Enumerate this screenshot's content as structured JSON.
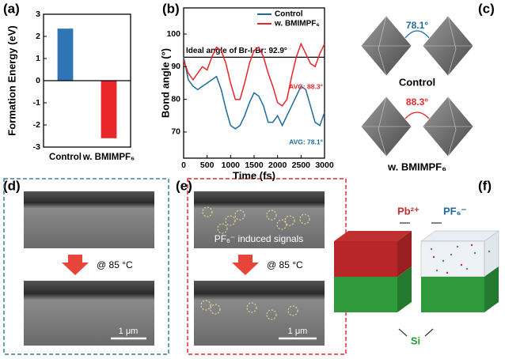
{
  "chart_data": [
    {
      "type": "bar",
      "y_label": "Formation Energy (eV)",
      "categories": [
        "Control",
        "w. BMIMPF₆"
      ],
      "values": [
        2.35,
        -2.6
      ],
      "colors": [
        "#2f75b5",
        "#e8262a"
      ],
      "ylim": [
        -3,
        3
      ],
      "yticks": [
        -3,
        -2,
        -1,
        0,
        1,
        2,
        3
      ]
    },
    {
      "type": "line",
      "x_label": "Time (fs)",
      "y_label": "Bond angle (°)",
      "x": [
        0,
        100,
        200,
        300,
        400,
        500,
        600,
        700,
        800,
        900,
        1000,
        1100,
        1200,
        1300,
        1400,
        1500,
        1600,
        1700,
        1800,
        1900,
        2000,
        2100,
        2200,
        2300,
        2400,
        2500,
        2600,
        2700,
        2800,
        2900,
        3000
      ],
      "series": [
        {
          "name": "Control",
          "color": "#1f6a9c",
          "values": [
            93,
            86,
            84,
            83,
            84,
            85,
            86,
            87,
            83,
            77,
            72,
            71,
            72,
            75,
            79,
            82,
            81,
            78,
            73,
            73,
            75,
            72,
            75,
            78,
            81,
            84,
            83,
            78,
            73,
            72,
            76
          ]
        },
        {
          "name": "w. BMIMPF₆",
          "color": "#e8262a",
          "values": [
            92,
            88,
            86,
            88,
            90,
            89,
            93,
            96,
            95,
            91,
            85,
            80,
            80,
            85,
            91,
            95,
            96,
            93,
            88,
            84,
            79,
            78,
            80,
            87,
            93,
            97,
            94,
            91,
            90,
            94,
            97
          ]
        }
      ],
      "reference_line": {
        "value": 92.9,
        "label": "Ideal angle of Br-I-Br: 92.9°"
      },
      "annotations": [
        "AVG: 88.3°",
        "AVG: 78.1°"
      ],
      "xlim": [
        0,
        3000
      ],
      "xticks": [
        0,
        500,
        1000,
        1500,
        2000,
        2500,
        3000
      ],
      "ylim": [
        62,
        108
      ],
      "yticks": [
        70,
        80,
        90,
        100
      ],
      "legend": "upper right"
    }
  ],
  "panel_labels": [
    "(a)",
    "(b)",
    "(c)",
    "(d)",
    "(e)",
    "(f)"
  ],
  "panel_c": {
    "angles": [
      "78.1°",
      "88.3°"
    ],
    "captions": [
      "Control",
      "w. BMIMPF₆"
    ]
  },
  "panel_d": {
    "temperature": "@ 85 °C",
    "scale_bar": "1 μm"
  },
  "panel_e": {
    "annotation": "PF₆⁻ induced signals",
    "temperature": "@ 85 °C",
    "scale_bar": "1 μm"
  },
  "panel_f": {
    "labels": [
      "Pb²⁺",
      "PF₆⁻",
      "Si"
    ]
  }
}
